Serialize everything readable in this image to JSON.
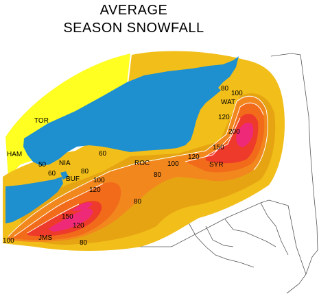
{
  "title": {
    "line1": "AVERAGE",
    "line2": "SEASON  SNOWFALL"
  },
  "colors": {
    "water": "#1e8fcf",
    "band_50": "#ffff22",
    "band_60": "#f2be1a",
    "band_80": "#e6a412",
    "band_100": "#f2871e",
    "band_120": "#f26b1a",
    "band_150": "#ee3a2a",
    "band_200": "#ee2a78",
    "land_plain": "#ffffff",
    "boundary": "#555555",
    "contour_line": "#ffffff"
  },
  "cities": [
    {
      "name": "TOR",
      "label": "TOR"
    },
    {
      "name": "HAM",
      "label": "HAM"
    },
    {
      "name": "NIA",
      "label": "NIA"
    },
    {
      "name": "BUF",
      "label": "BUF"
    },
    {
      "name": "ROC",
      "label": "ROC"
    },
    {
      "name": "SYR",
      "label": "SYR"
    },
    {
      "name": "WAT",
      "label": "WAT"
    },
    {
      "name": "JMS",
      "label": "JMS"
    }
  ],
  "contour_labels": [
    {
      "id": "c50",
      "label": "50"
    },
    {
      "id": "c60a",
      "label": "60"
    },
    {
      "id": "c60b",
      "label": "60"
    },
    {
      "id": "c80a",
      "label": "80"
    },
    {
      "id": "c80b",
      "label": "80"
    },
    {
      "id": "c80c",
      "label": "80"
    },
    {
      "id": "c80d",
      "label": "80"
    },
    {
      "id": "c80e",
      "label": "80"
    },
    {
      "id": "c100a",
      "label": "100"
    },
    {
      "id": "c100b",
      "label": "100"
    },
    {
      "id": "c100c",
      "label": "100"
    },
    {
      "id": "c100d",
      "label": "100"
    },
    {
      "id": "c120a",
      "label": "120"
    },
    {
      "id": "c120b",
      "label": "120"
    },
    {
      "id": "c120c",
      "label": "120"
    },
    {
      "id": "c120d",
      "label": "120"
    },
    {
      "id": "c150a",
      "label": "150"
    },
    {
      "id": "c150b",
      "label": "150"
    },
    {
      "id": "c200",
      "label": "200"
    }
  ]
}
